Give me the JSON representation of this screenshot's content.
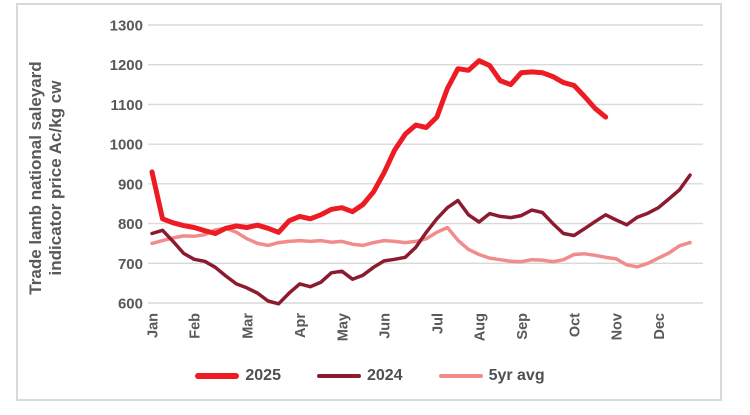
{
  "chart_data": {
    "type": "line",
    "y_axis_title_lines": [
      "Trade lamb national saleyard",
      "indicator price Ac/kg cw"
    ],
    "x_tick_labels": [
      "Jan",
      "Feb",
      "Mar",
      "Apr",
      "May",
      "Jun",
      "Jul",
      "Aug",
      "Sep",
      "Oct",
      "Nov",
      "Dec"
    ],
    "x_tick_weeks": [
      1,
      5,
      10,
      15,
      19,
      23,
      28,
      32,
      36,
      41,
      45,
      49
    ],
    "x_unit": "week",
    "weeks_total": 52,
    "ylim": [
      600,
      1300
    ],
    "ytick_step": 100,
    "grid": true,
    "gridline_color": "#d9d9d9",
    "legend_position": "bottom",
    "series": [
      {
        "name": "2025",
        "color": "#ed1c24",
        "line_width": 5,
        "values": [
          930,
          812,
          802,
          795,
          790,
          782,
          775,
          788,
          794,
          790,
          796,
          788,
          778,
          807,
          818,
          812,
          822,
          836,
          840,
          830,
          848,
          880,
          928,
          985,
          1025,
          1048,
          1042,
          1068,
          1140,
          1190,
          1186,
          1210,
          1198,
          1160,
          1150,
          1180,
          1182,
          1180,
          1170,
          1155,
          1148,
          1120,
          1090,
          1068
        ]
      },
      {
        "name": "2024",
        "color": "#8c1b30",
        "line_width": 3.5,
        "values": [
          775,
          783,
          755,
          725,
          710,
          705,
          690,
          668,
          648,
          638,
          625,
          605,
          598,
          625,
          648,
          641,
          652,
          676,
          680,
          660,
          670,
          690,
          706,
          710,
          715,
          740,
          778,
          812,
          840,
          858,
          822,
          804,
          825,
          818,
          815,
          820,
          834,
          828,
          800,
          775,
          770,
          787,
          805,
          822,
          809,
          797,
          816,
          826,
          840,
          862,
          885,
          922
        ]
      },
      {
        "name": "5yr avg",
        "color": "#f28c8c",
        "line_width": 3.5,
        "values": [
          750,
          757,
          764,
          769,
          768,
          772,
          784,
          788,
          778,
          762,
          750,
          745,
          752,
          755,
          757,
          755,
          757,
          753,
          755,
          748,
          745,
          752,
          757,
          755,
          752,
          755,
          762,
          778,
          790,
          758,
          735,
          722,
          713,
          709,
          705,
          704,
          709,
          708,
          704,
          709,
          722,
          724,
          720,
          715,
          711,
          696,
          691,
          700,
          713,
          726,
          744,
          752
        ]
      }
    ]
  }
}
